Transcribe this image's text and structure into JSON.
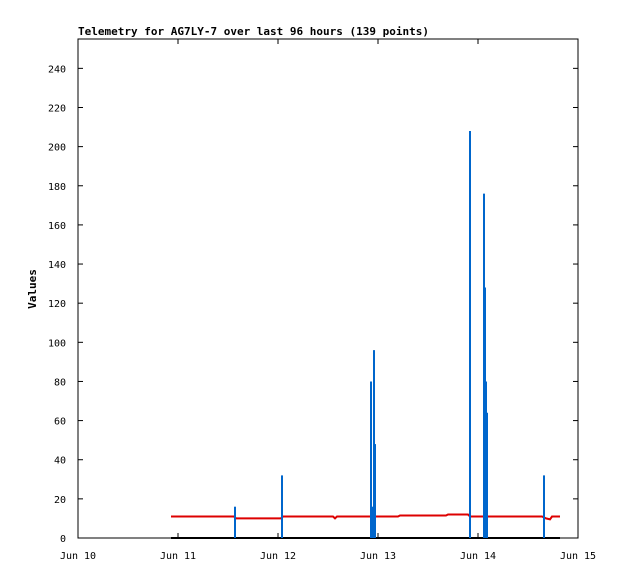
{
  "chart_data": {
    "type": "line",
    "title": "Telemetry for AG7LY-7 over last 96 hours (139 points)",
    "xlabel": "",
    "ylabel": "Values",
    "xlim_days": [
      10,
      15
    ],
    "ylim": [
      0,
      255
    ],
    "x_ticks": [
      {
        "value": 10,
        "label": "Jun 10"
      },
      {
        "value": 11,
        "label": "Jun 11"
      },
      {
        "value": 12,
        "label": "Jun 12"
      },
      {
        "value": 13,
        "label": "Jun 13"
      },
      {
        "value": 14,
        "label": "Jun 14"
      },
      {
        "value": 15,
        "label": "Jun 15"
      }
    ],
    "y_ticks": [
      0,
      20,
      40,
      60,
      80,
      100,
      120,
      140,
      160,
      180,
      200,
      220,
      240
    ],
    "grid": false,
    "legend": "none",
    "series": [
      {
        "color": "#0066cc",
        "style": "impulse",
        "points": [
          [
            11.57,
            16
          ],
          [
            12.04,
            32
          ],
          [
            12.93,
            80
          ],
          [
            12.94,
            16
          ],
          [
            12.96,
            96
          ],
          [
            12.97,
            48
          ],
          [
            13.92,
            208
          ],
          [
            14.06,
            176
          ],
          [
            14.07,
            128
          ],
          [
            14.08,
            80
          ],
          [
            14.09,
            64
          ],
          [
            14.66,
            32
          ]
        ]
      },
      {
        "color": "#dd0000",
        "style": "line",
        "points": [
          [
            10.93,
            11
          ],
          [
            11.56,
            11
          ],
          [
            11.58,
            10
          ],
          [
            12.03,
            10
          ],
          [
            12.05,
            11
          ],
          [
            12.55,
            11
          ],
          [
            12.57,
            10
          ],
          [
            12.59,
            11
          ],
          [
            13.2,
            11
          ],
          [
            13.22,
            11.5
          ],
          [
            13.68,
            11.5
          ],
          [
            13.7,
            12
          ],
          [
            13.9,
            12
          ],
          [
            13.92,
            11
          ],
          [
            14.64,
            11
          ],
          [
            14.68,
            10
          ],
          [
            14.72,
            9.5
          ],
          [
            14.74,
            11
          ],
          [
            14.82,
            11
          ]
        ]
      },
      {
        "color": "#000000",
        "style": "line",
        "points": [
          [
            10.93,
            0
          ],
          [
            14.82,
            0
          ]
        ]
      }
    ]
  }
}
